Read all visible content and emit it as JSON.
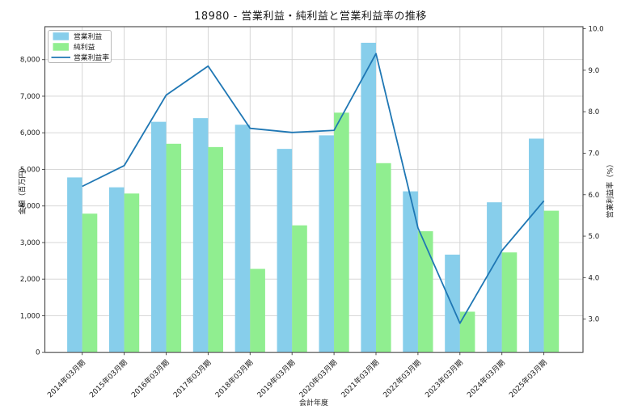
{
  "chart_data": {
    "type": "bar",
    "title": "18980 - 営業利益・純利益と営業利益率の推移",
    "xlabel": "会計年度",
    "ylabel_left": "金額（百万円）",
    "ylabel_right": "営業利益率（%）",
    "categories": [
      "2014年03月期",
      "2015年03月期",
      "2016年03月期",
      "2017年03月期",
      "2018年03月期",
      "2019年03月期",
      "2020年03月期",
      "2021年03月期",
      "2022年03月期",
      "2023年03月期",
      "2024年03月期",
      "2025年03月期"
    ],
    "series": [
      {
        "name": "営業利益",
        "kind": "bar",
        "axis": "left",
        "color": "#87CEEB",
        "values": [
          4780,
          4510,
          6300,
          6400,
          6220,
          5560,
          5930,
          8460,
          4400,
          2670,
          4100,
          5840
        ]
      },
      {
        "name": "純利益",
        "kind": "bar",
        "axis": "left",
        "color": "#90EE90",
        "values": [
          3790,
          4340,
          5700,
          5610,
          2280,
          3470,
          6550,
          5170,
          3310,
          1110,
          2730,
          3870
        ]
      },
      {
        "name": "営業利益率",
        "kind": "line",
        "axis": "right",
        "color": "#1f77b4",
        "values": [
          6.2,
          6.7,
          8.4,
          9.1,
          7.6,
          7.5,
          7.55,
          9.4,
          5.2,
          2.9,
          4.65,
          5.85
        ]
      }
    ],
    "ylim_left": [
      0,
      8900
    ],
    "ylim_right": [
      2.2,
      10.05
    ],
    "yticks_left": [
      "0",
      "1,000",
      "2,000",
      "3,000",
      "4,000",
      "5,000",
      "6,000",
      "7,000",
      "8,000"
    ],
    "yticks_right": [
      "3.0",
      "4.0",
      "5.0",
      "6.0",
      "7.0",
      "8.0",
      "9.0",
      "10.0"
    ],
    "grid": true,
    "legend": [
      "営業利益",
      "純利益",
      "営業利益率"
    ],
    "legend_position": "upper left",
    "colors": {
      "grid": "#d2d2d2",
      "frame": "#424242",
      "text": "#1a1a1a",
      "legend_border": "#b3b3b3"
    }
  }
}
